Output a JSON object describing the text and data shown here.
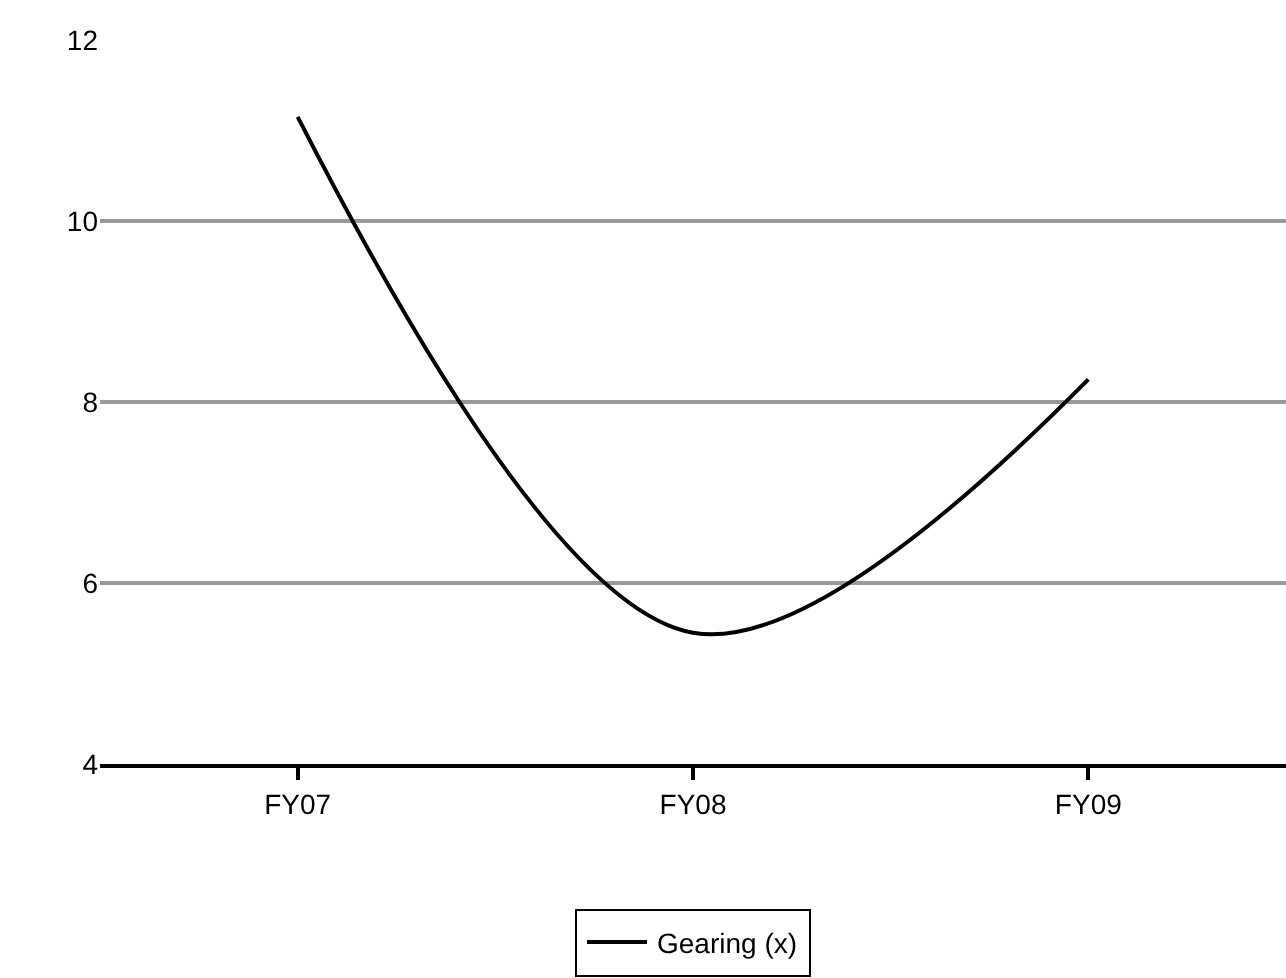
{
  "chart_data": {
    "type": "line",
    "categories": [
      "FY07",
      "FY08",
      "FY09"
    ],
    "series": [
      {
        "name": "Gearing (x)",
        "color": "#000000",
        "values": [
          11.15,
          5.45,
          8.25
        ]
      }
    ],
    "ylim": [
      4,
      12
    ],
    "yticks": [
      4,
      6,
      8,
      10,
      12
    ],
    "grid": "y",
    "legend": "bottom",
    "marker": "none",
    "line_style": "solid"
  }
}
